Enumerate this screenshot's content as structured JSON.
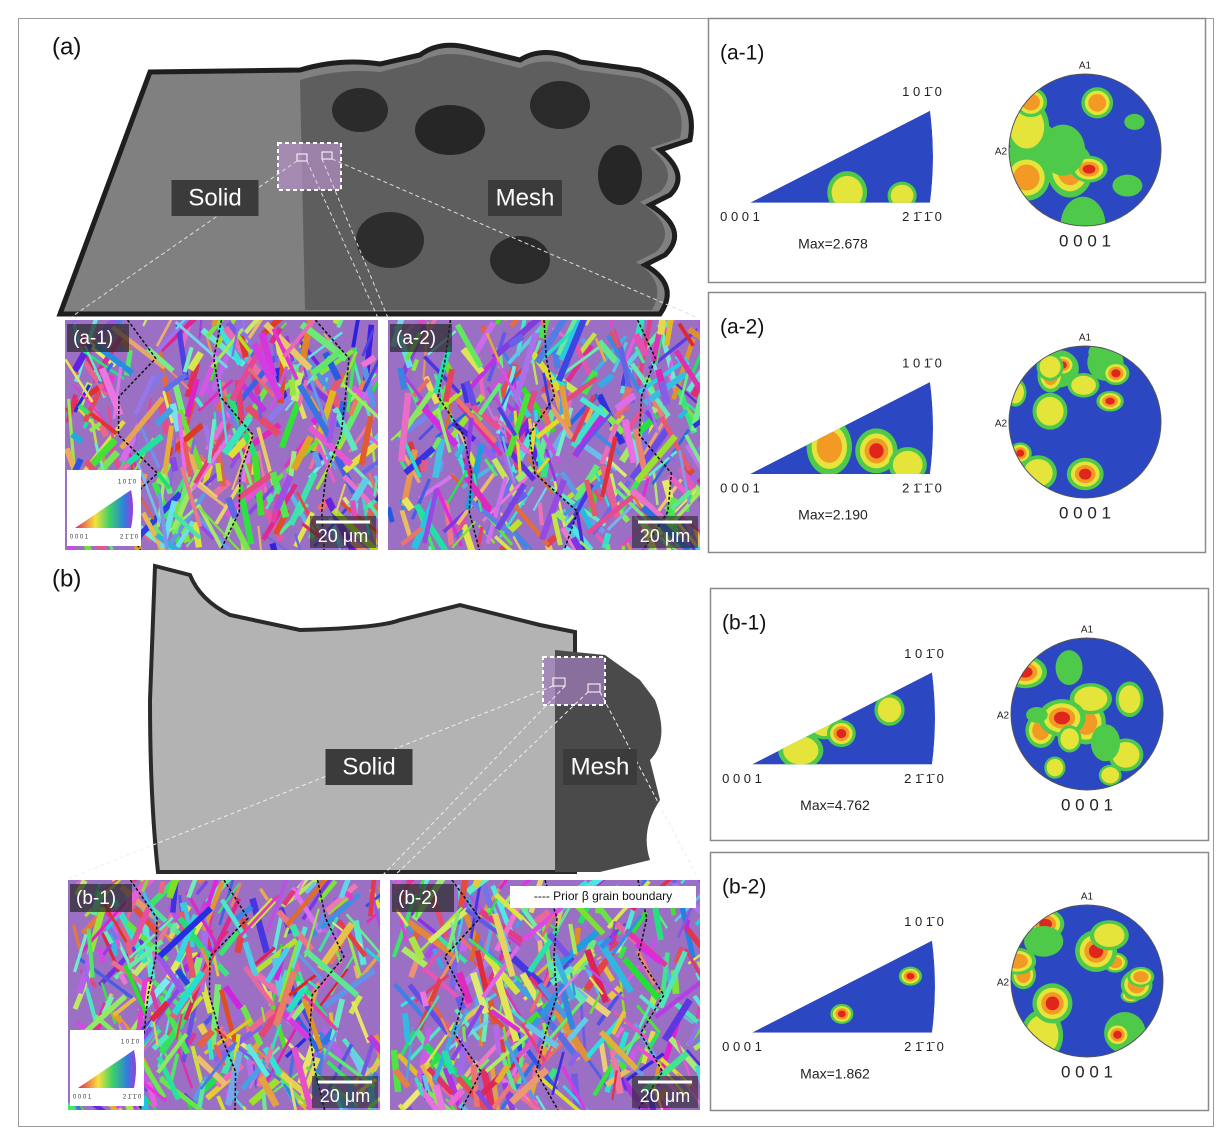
{
  "figure": {
    "parts": [
      {
        "label": "(a)",
        "solid": "Solid",
        "mesh": "Mesh",
        "maps": [
          {
            "label": "(a-1)",
            "scale_bar": "20 μm",
            "key": {
              "top": "1 0 1̄ 0",
              "left": "0 0 0 1",
              "right": "2 1̄ 1̄ 0"
            }
          },
          {
            "label": "(a-2)",
            "scale_bar": "20 μm"
          }
        ],
        "textures": [
          {
            "label": "(a-1)",
            "ipf_top": "1 0 1̄ 0",
            "ipf_left": "0 0 0 1",
            "ipf_right": "2 1̄ 1̄ 0",
            "max": "Max=2.678",
            "pf_a1": "A1",
            "pf_a2": "A2",
            "pf_bottom": "0 0 0 1"
          },
          {
            "label": "(a-2)",
            "ipf_top": "1 0 1̄ 0",
            "ipf_left": "0 0 0 1",
            "ipf_right": "2 1̄ 1̄ 0",
            "max": "Max=2.190",
            "pf_a1": "A1",
            "pf_a2": "A2",
            "pf_bottom": "0 0 0 1"
          }
        ]
      },
      {
        "label": "(b)",
        "solid": "Solid",
        "mesh": "Mesh",
        "maps": [
          {
            "label": "(b-1)",
            "scale_bar": "20 μm",
            "key": {
              "top": "1 0 1̄ 0",
              "left": "0 0 0 1",
              "right": "2 1̄ 1̄ 0"
            }
          },
          {
            "label": "(b-2)",
            "scale_bar": "20 μm",
            "legend": "---- Prior β grain boundary"
          }
        ],
        "textures": [
          {
            "label": "(b-1)",
            "ipf_top": "1 0 1̄ 0",
            "ipf_left": "0 0 0 1",
            "ipf_right": "2 1̄ 1̄ 0",
            "max": "Max=4.762",
            "pf_a1": "A1",
            "pf_a2": "A2",
            "pf_bottom": "0 0 0 1"
          },
          {
            "label": "(b-2)",
            "ipf_top": "1 0 1̄ 0",
            "ipf_left": "0 0 0 1",
            "ipf_right": "2 1̄ 1̄ 0",
            "max": "Max=1.862",
            "pf_a1": "A1",
            "pf_a2": "A2",
            "pf_bottom": "0 0 0 1"
          }
        ]
      }
    ]
  }
}
